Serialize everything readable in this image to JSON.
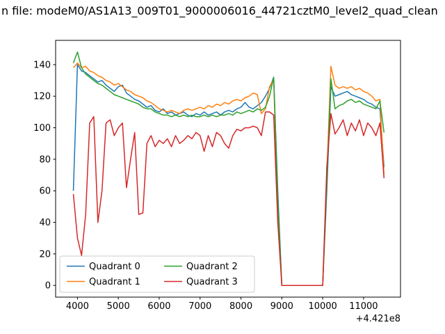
{
  "window": {
    "background": "#ffffff"
  },
  "chart_data": {
    "type": "line",
    "title": "n file: modeM0/AS1A13_009T01_9000006016_44721cztM0_level2_quad_clean",
    "xlabel": "",
    "ylabel": "",
    "x_offset_text": "+4.421e8",
    "grid": false,
    "xticks": [
      4000,
      5000,
      6000,
      7000,
      8000,
      9000,
      10000,
      11000
    ],
    "yticks": [
      0,
      20,
      40,
      60,
      80,
      100,
      120,
      140
    ],
    "xlim": [
      3466,
      11903
    ],
    "ylim": [
      -7.4,
      155.4
    ],
    "legend": {
      "position": "lower left",
      "ncol": 2,
      "entries": [
        "Quadrant 0",
        "Quadrant 1",
        "Quadrant 2",
        "Quadrant 3"
      ]
    },
    "x": [
      3900,
      4000,
      4100,
      4200,
      4300,
      4400,
      4500,
      4600,
      4700,
      4800,
      4900,
      5000,
      5100,
      5200,
      5300,
      5400,
      5500,
      5600,
      5700,
      5800,
      5900,
      6000,
      6100,
      6200,
      6300,
      6400,
      6500,
      6600,
      6700,
      6800,
      6900,
      7000,
      7100,
      7200,
      7300,
      7400,
      7500,
      7600,
      7700,
      7800,
      7900,
      8000,
      8100,
      8200,
      8300,
      8400,
      8500,
      8600,
      8700,
      8800,
      8900,
      9000,
      9100,
      9200,
      9300,
      9400,
      9500,
      9600,
      9700,
      9800,
      9900,
      10000,
      10100,
      10200,
      10300,
      10400,
      10500,
      10600,
      10700,
      10800,
      10900,
      11000,
      11100,
      11200,
      11300,
      11400,
      11500
    ],
    "series": [
      {
        "name": "Quadrant 0",
        "color": "#1f77b4",
        "values": [
          60,
          140,
          136,
          135,
          133,
          131,
          129,
          130,
          127,
          125,
          123,
          126,
          127,
          122,
          120,
          118,
          117,
          115,
          113,
          114,
          111,
          110,
          112,
          109,
          110,
          108,
          109,
          110,
          108,
          107,
          109,
          108,
          110,
          108,
          109,
          110,
          108,
          110,
          111,
          110,
          112,
          113,
          116,
          113,
          112,
          114,
          116,
          120,
          125,
          132,
          60,
          0,
          0,
          0,
          0,
          0,
          0,
          0,
          0,
          0,
          0,
          0,
          60,
          126,
          120,
          121,
          122,
          123,
          121,
          120,
          119,
          118,
          116,
          115,
          113,
          112,
          75
        ]
      },
      {
        "name": "Quadrant 1",
        "color": "#ff7f0e",
        "values": [
          138,
          141,
          138,
          139,
          136,
          135,
          133,
          132,
          130,
          129,
          127,
          128,
          126,
          124,
          123,
          121,
          120,
          119,
          117,
          116,
          114,
          112,
          111,
          110,
          111,
          110,
          109,
          111,
          112,
          111,
          112,
          113,
          112,
          114,
          113,
          115,
          114,
          116,
          115,
          117,
          118,
          117,
          119,
          120,
          122,
          121,
          109,
          112,
          126,
          131,
          50,
          0,
          0,
          0,
          0,
          0,
          0,
          0,
          0,
          0,
          0,
          0,
          70,
          139,
          127,
          125,
          126,
          125,
          126,
          124,
          125,
          123,
          122,
          120,
          117,
          118,
          70
        ]
      },
      {
        "name": "Quadrant 2",
        "color": "#2ca02c",
        "values": [
          141,
          148,
          138,
          134,
          132,
          130,
          128,
          127,
          125,
          123,
          121,
          120,
          119,
          118,
          117,
          116,
          115,
          113,
          112,
          112,
          110,
          109,
          108,
          108,
          107,
          108,
          107,
          108,
          107,
          108,
          107,
          107,
          108,
          107,
          108,
          107,
          108,
          108,
          109,
          108,
          110,
          109,
          110,
          111,
          110,
          112,
          111,
          113,
          120,
          132,
          55,
          0,
          0,
          0,
          0,
          0,
          0,
          0,
          0,
          0,
          0,
          0,
          65,
          131,
          112,
          114,
          115,
          117,
          118,
          116,
          117,
          115,
          114,
          113,
          112,
          117,
          97
        ]
      },
      {
        "name": "Quadrant 3",
        "color": "#d62728",
        "values": [
          58,
          30,
          19,
          45,
          103,
          107,
          40,
          60,
          103,
          105,
          95,
          100,
          103,
          62,
          80,
          97,
          45,
          46,
          90,
          95,
          88,
          92,
          90,
          93,
          88,
          95,
          90,
          92,
          95,
          93,
          97,
          95,
          85,
          95,
          88,
          97,
          95,
          90,
          87,
          95,
          99,
          98,
          100,
          100,
          101,
          100,
          95,
          110,
          110,
          108,
          40,
          0,
          0,
          0,
          0,
          0,
          0,
          0,
          0,
          0,
          0,
          0,
          75,
          109,
          96,
          100,
          105,
          95,
          103,
          98,
          105,
          95,
          103,
          100,
          95,
          103,
          68
        ]
      }
    ]
  }
}
